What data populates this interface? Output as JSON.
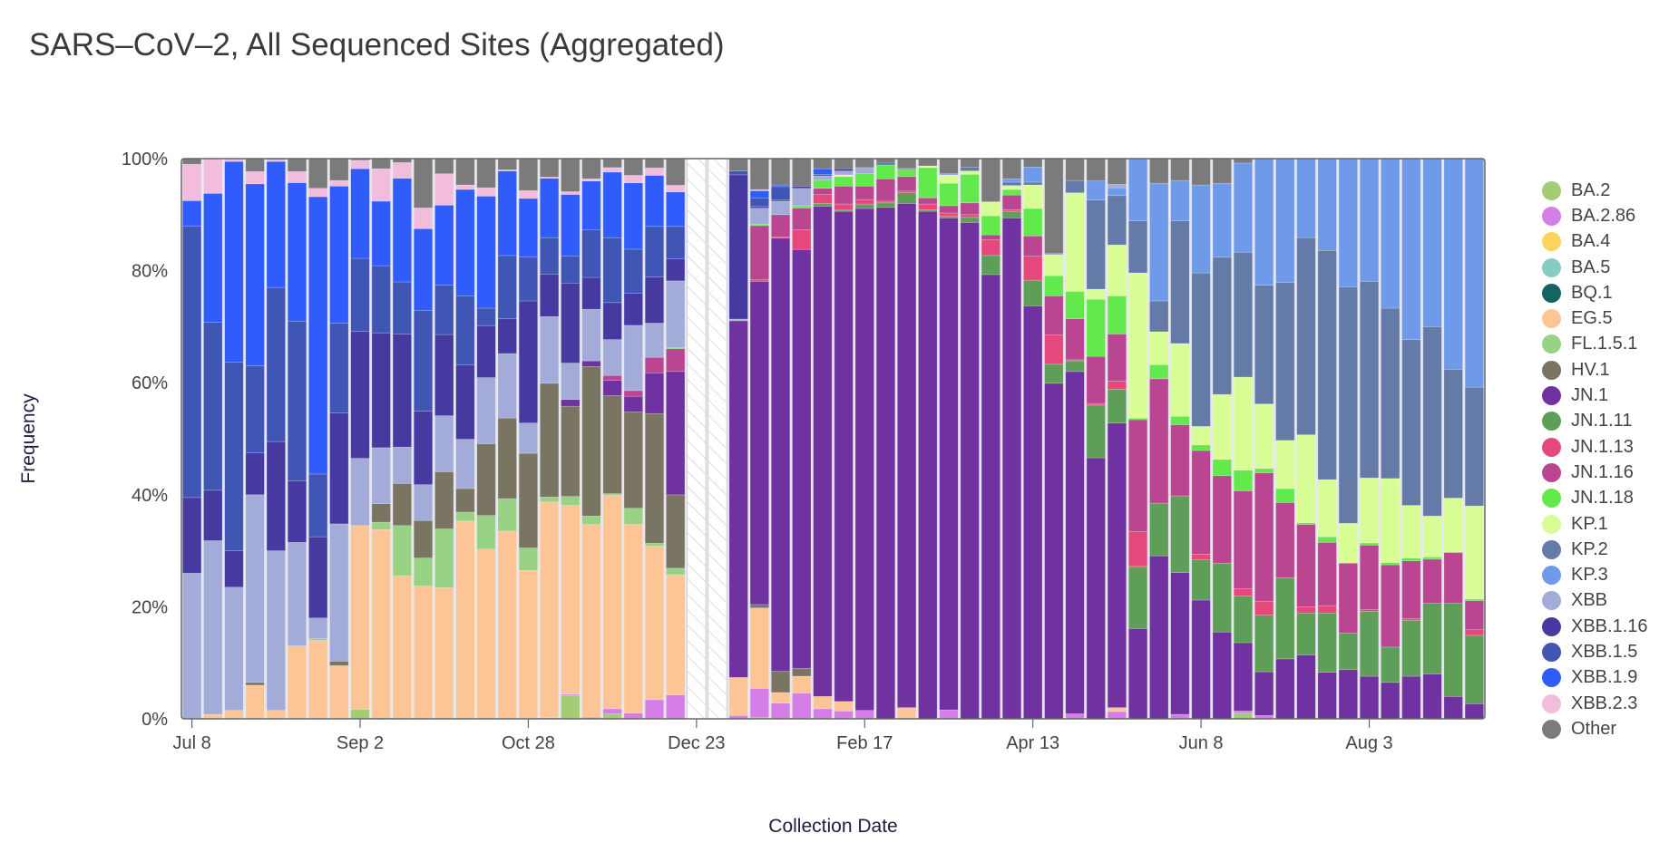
{
  "chart_data": {
    "type": "bar",
    "stacked": true,
    "title": "SARS–CoV–2, All Sequenced Sites (Aggregated)",
    "xlabel": "Collection Date",
    "ylabel": "Frequency",
    "ylim": [
      0,
      100
    ],
    "y_ticks": [
      "0%",
      "20%",
      "40%",
      "60%",
      "80%",
      "100%"
    ],
    "y_tick_values": [
      0,
      20,
      40,
      60,
      80,
      100
    ],
    "x_ticks": [
      {
        "label": "Jul 8",
        "bar_index": 0
      },
      {
        "label": "Sep 2",
        "bar_index": 8
      },
      {
        "label": "Oct 28",
        "bar_index": 16
      },
      {
        "label": "Dec 23",
        "bar_index": 24
      },
      {
        "label": "Feb 17",
        "bar_index": 32
      },
      {
        "label": "Apr 13",
        "bar_index": 40
      },
      {
        "label": "Jun 8",
        "bar_index": 48
      },
      {
        "label": "Aug 3",
        "bar_index": 56
      }
    ],
    "bar_interval": "weekly",
    "n_bars": 62,
    "missing_bars": [
      24,
      25
    ],
    "legend_position": "right",
    "series": [
      {
        "name": "BA.2",
        "color": "#a2cd72"
      },
      {
        "name": "BA.2.86",
        "color": "#d67ee8"
      },
      {
        "name": "BA.4",
        "color": "#fcd35e"
      },
      {
        "name": "BA.5",
        "color": "#85cdc4"
      },
      {
        "name": "BQ.1",
        "color": "#166363"
      },
      {
        "name": "EG.5",
        "color": "#fdc596"
      },
      {
        "name": "FL.1.5.1",
        "color": "#98d284"
      },
      {
        "name": "HV.1",
        "color": "#7a7462"
      },
      {
        "name": "JN.1",
        "color": "#7032a0"
      },
      {
        "name": "JN.1.11",
        "color": "#5f9e58"
      },
      {
        "name": "JN.1.13",
        "color": "#e5487a"
      },
      {
        "name": "JN.1.16",
        "color": "#ba4692"
      },
      {
        "name": "JN.1.18",
        "color": "#62ea4c"
      },
      {
        "name": "KP.1",
        "color": "#d9fd95"
      },
      {
        "name": "KP.2",
        "color": "#637ba6"
      },
      {
        "name": "KP.3",
        "color": "#6f9ae9"
      },
      {
        "name": "XBB",
        "color": "#a3acd8"
      },
      {
        "name": "XBB.1.16",
        "color": "#463aa0"
      },
      {
        "name": "XBB.1.5",
        "color": "#4056b4"
      },
      {
        "name": "XBB.1.9",
        "color": "#2f5cfa"
      },
      {
        "name": "XBB.2.3",
        "color": "#f2bcdc"
      },
      {
        "name": "Other",
        "color": "#7b7b7b"
      }
    ],
    "bars": [
      {
        "XBB": 26,
        "XBB.1.16": 13.5,
        "XBB.1.5": 48.5,
        "XBB.1.9": 4.5,
        "XBB.2.3": 6.5,
        "Other": 1
      },
      {
        "EG.5": 0.8,
        "XBB": 31,
        "XBB.1.16": 9,
        "XBB.1.5": 30,
        "XBB.1.9": 23,
        "XBB.2.3": 6.2
      },
      {
        "EG.5": 1.5,
        "XBB": 22,
        "XBB.1.16": 6.5,
        "XBB.1.5": 33.7,
        "XBB.1.9": 35.8,
        "XBB.2.3": 0.5
      },
      {
        "EG.5": 6,
        "HV.1": 0.5,
        "XBB": 33.5,
        "XBB.1.16": 7.5,
        "XBB.1.5": 15.5,
        "XBB.1.9": 32.5,
        "XBB.2.3": 2.2,
        "Other": 2.3
      },
      {
        "EG.5": 1.5,
        "XBB": 28.5,
        "XBB.1.16": 19.5,
        "XBB.1.5": 27.5,
        "XBB.1.9": 22.5,
        "XBB.2.3": 0.3,
        "Other": 0.2
      },
      {
        "EG.5": 13,
        "XBB": 18.5,
        "XBB.1.16": 11,
        "XBB.1.5": 28.5,
        "XBB.1.9": 24.7,
        "XBB.2.3": 2,
        "Other": 2.3
      },
      {
        "EG.5": 14,
        "FL.1.5.1": 0.3,
        "XBB": 3.7,
        "XBB.1.16": 14.5,
        "XBB.1.5": 11.2,
        "XBB.1.9": 49.5,
        "XBB.2.3": 1.5,
        "Other": 5.3
      },
      {
        "EG.5": 9.5,
        "HV.1": 0.8,
        "XBB": 24.5,
        "XBB.1.16": 19.8,
        "XBB.1.5": 16,
        "XBB.1.9": 24.5,
        "XBB.2.3": 1,
        "Other": 3.9
      },
      {
        "BA.2": 1.7,
        "EG.5": 32.8,
        "XBB": 12,
        "XBB.1.16": 22.7,
        "XBB.1.5": 13,
        "XBB.1.9": 16,
        "XBB.2.3": 1.5,
        "Other": 0.3
      },
      {
        "BA.2": 0.3,
        "EG.5": 33.5,
        "FL.1.5.1": 1.3,
        "HV.1": 3.3,
        "XBB": 10,
        "XBB.1.16": 20.5,
        "XBB.1.5": 12,
        "XBB.1.9": 11.5,
        "XBB.2.3": 5.8,
        "Other": 1.8
      },
      {
        "EG.5": 25.5,
        "FL.1.5.1": 9,
        "HV.1": 7.5,
        "XBB": 6.5,
        "XBB.1.16": 20.2,
        "XBB.1.5": 9.3,
        "XBB.1.9": 18.5,
        "XBB.2.3": 2.8,
        "Other": 0.7
      },
      {
        "EG.5": 23.7,
        "FL.1.5.1": 5,
        "HV.1": 6.7,
        "XBB": 6.4,
        "XBB.1.16": 13.1,
        "XBB.1.5": 18,
        "XBB.1.9": 14.6,
        "XBB.2.3": 3.7,
        "Other": 8.8
      },
      {
        "EG.5": 23.4,
        "FL.1.5.1": 10.5,
        "HV.1": 10.2,
        "XBB": 10,
        "XBB.1.16": 14.5,
        "XBB.1.5": 8.8,
        "XBB.1.9": 14.3,
        "XBB.2.3": 5.6,
        "Other": 2.7
      },
      {
        "EG.5": 35.3,
        "FL.1.5.1": 1.6,
        "HV.1": 4.2,
        "XBB": 8.8,
        "XBB.1.16": 13.3,
        "XBB.1.5": 12.3,
        "XBB.1.9": 19,
        "XBB.2.3": 0.8,
        "Other": 4.7
      },
      {
        "EG.5": 30.3,
        "FL.1.5.1": 6,
        "HV.1": 12.8,
        "XBB": 11.8,
        "XBB.1.16": 9.3,
        "XBB.1.5": 3.1,
        "XBB.1.9": 20,
        "XBB.2.3": 1.5,
        "Other": 5.2
      },
      {
        "EG.5": 33.5,
        "FL.1.5.1": 5.8,
        "HV.1": 14.4,
        "XBB": 11.5,
        "XBB.1.16": 6.2,
        "XBB.1.5": 11.3,
        "XBB.1.9": 15.1,
        "XBB.2.3": 0.2,
        "Other": 2
      },
      {
        "EG.5": 26.5,
        "FL.1.5.1": 4,
        "HV.1": 16.9,
        "XBB": 5.4,
        "XBB.1.16": 21.8,
        "XBB.1.5": 7.9,
        "XBB.1.9": 10.4,
        "XBB.2.3": 1.4,
        "Other": 5.7
      },
      {
        "BA.2": 0.2,
        "EG.5": 38.5,
        "FL.1.5.1": 0.9,
        "HV.1": 20.3,
        "XBB": 11.9,
        "XBB.1.16": 7.6,
        "XBB.1.5": 6.5,
        "XBB.1.9": 10.6,
        "XBB.2.3": 0.2,
        "Other": 3.3
      },
      {
        "BA.2": 4.2,
        "BA.2.86": 0.2,
        "EG.5": 33.7,
        "FL.1.5.1": 1.6,
        "HV.1": 16.1,
        "JN.1": 1.2,
        "XBB": 6.5,
        "XBB.1.16": 14.3,
        "XBB.1.5": 4.8,
        "XBB.1.9": 11,
        "XBB.2.3": 0.5,
        "Other": 5.9
      },
      {
        "BA.2.86": 0.3,
        "EG.5": 34.4,
        "FL.1.5.1": 1.5,
        "HV.1": 26.7,
        "JN.1": 1,
        "XBB": 9.2,
        "XBB.1.16": 5.7,
        "XBB.1.5": 8.5,
        "XBB.1.9": 8.7,
        "XBB.2.3": 0.4,
        "Other": 3.6
      },
      {
        "BA.2": 0.9,
        "BA.2.86": 0.9,
        "EG.5": 38.1,
        "FL.1.5.1": 0.3,
        "HV.1": 17.5,
        "JN.1": 2.7,
        "JN.1.16": 0.9,
        "XBB": 6.4,
        "XBB.1.16": 6.6,
        "XBB.1.5": 11.6,
        "XBB.1.9": 11.7,
        "XBB.2.3": 0.8,
        "Other": 1.6
      },
      {
        "BA.2.86": 1,
        "EG.5": 32.7,
        "FL.1.5.1": 2.8,
        "HV.1": 16.7,
        "JN.1": 2.7,
        "JN.1.16": 1,
        "XBB": 11.3,
        "XBB.1.16": 5.6,
        "XBB.1.5": 7.6,
        "XBB.1.9": 11.5,
        "XBB.2.3": 1.3,
        "Other": 2.9
      },
      {
        "BA.2.86": 3.3,
        "EG.5": 26.5,
        "FL.1.5.1": 0.5,
        "HV.1": 22.4,
        "JN.1": 7,
        "JN.1.16": 2.7,
        "XBB": 5.9,
        "XBB.1.16": 8,
        "XBB.1.5": 8.7,
        "XBB.1.9": 8.8,
        "XBB.2.3": 1.3,
        "Other": 1.6
      },
      {
        "BA.2.86": 4.3,
        "EG.5": 21.6,
        "FL.1.5.1": 1.2,
        "HV.1": 13.2,
        "JN.1": 22.2,
        "JN.1.16": 4.1,
        "JN.1.18": 0.2,
        "XBB": 12,
        "XBB.1.16": 4,
        "XBB.1.5": 5.8,
        "XBB.1.9": 6.2,
        "XBB.2.3": 1.2,
        "Other": 4.8
      },
      null,
      null,
      {
        "BA.2.86": 0.6,
        "EG.5": 6.8,
        "JN.1": 63.8,
        "XBB": 0.3,
        "XBB.1.16": 25.8,
        "XBB.1.5": 0.7,
        "Other": 2.2
      },
      {
        "BA.2": 0.2,
        "BA.2.86": 5.2,
        "EG.5": 14.3,
        "HV.1": 0.6,
        "JN.1": 57.4,
        "JN.1.13": 0.3,
        "JN.1.16": 9.6,
        "JN.1.18": 0.2,
        "XBB": 2.9,
        "XBB.1.16": 0.3,
        "XBB.1.5": 1.5,
        "XBB.1.9": 1.3,
        "XBB.2.3": 0.2,
        "Other": 5.5
      },
      {
        "BA.2.86": 2.8,
        "EG.5": 1.9,
        "HV.1": 3.8,
        "JN.1": 77.3,
        "JN.1.13": 0.2,
        "JN.1.16": 4,
        "XBB": 2.4,
        "XBB.1.16": 0.2,
        "XBB.1.5": 2.4,
        "XBB.1.9": 0.3,
        "Other": 4.7
      },
      {
        "BA.2.86": 4.6,
        "EG.5": 3,
        "HV.1": 1.4,
        "JN.1": 74.7,
        "JN.1.13": 3.5,
        "JN.1.16": 3.9,
        "JN.1.18": 0.4,
        "XBB": 3.1,
        "XBB.1.16": 0.4,
        "Other": 4.9
      },
      {
        "BA.2.86": 1.8,
        "EG.5": 2.2,
        "JN.1": 87.5,
        "JN.1.11": 0.5,
        "JN.1.13": 1.6,
        "JN.1.16": 1.1,
        "JN.1.18": 1.5,
        "XBB": 0.7,
        "XBB.1.5": 0.3,
        "XBB.1.9": 1,
        "Other": 1.8
      },
      {
        "BA.2.86": 1.4,
        "EG.5": 1.7,
        "JN.1": 87.5,
        "JN.1.11": 0.2,
        "JN.1.13": 1.1,
        "JN.1.16": 3.2,
        "JN.1.18": 1.7,
        "KP.1": 0.3,
        "XBB": 0.7,
        "XBB.1.16": 0.4,
        "Other": 1.8
      },
      {
        "BA.2.86": 1.5,
        "JN.1": 89.6,
        "JN.1.11": 0.8,
        "JN.1.13": 0.8,
        "JN.1.16": 2.4,
        "JN.1.18": 2.2,
        "XBB": 1.1,
        "Other": 1.6
      },
      {
        "JN.1": 91.3,
        "JN.1.11": 0.8,
        "JN.1.13": 0.3,
        "JN.1.16": 4,
        "JN.1.18": 2.5,
        "XBB.1.5": 0.3,
        "Other": 0.8
      },
      {
        "EG.5": 2,
        "JN.1": 90,
        "JN.1.11": 1.9,
        "JN.1.13": 0.3,
        "JN.1.16": 2.6,
        "JN.1.18": 1.3,
        "KP.2": 0.2,
        "Other": 1.7
      },
      {
        "JN.1": 90.6,
        "JN.1.11": 0.3,
        "JN.1.13": 1,
        "JN.1.16": 1.1,
        "JN.1.18": 5.4,
        "KP.1": 0.3,
        "Other": 1.3
      },
      {
        "BA.2.86": 1.6,
        "JN.1": 87.8,
        "JN.1.11": 0.3,
        "JN.1.13": 0.6,
        "JN.1.16": 1.3,
        "JN.1.18": 4,
        "KP.1": 1.5,
        "KP.3": 0.2,
        "Other": 2.7
      },
      {
        "JN.1": 88.6,
        "JN.1.11": 0.9,
        "JN.1.13": 0.5,
        "JN.1.16": 2.1,
        "JN.1.18": 5.1,
        "KP.1": 0.6,
        "KP.2": 0.7,
        "Other": 1.5
      },
      {
        "JN.1": 79.3,
        "JN.1.11": 3.4,
        "JN.1.13": 2.8,
        "JN.1.16": 0.9,
        "JN.1.18": 3.4,
        "KP.1": 2.5,
        "Other": 7.7
      },
      {
        "JN.1": 89.4,
        "JN.1.11": 1.2,
        "JN.1.13": 0.3,
        "JN.1.16": 2.6,
        "JN.1.18": 1,
        "KP.1": 0.7,
        "KP.2": 0.6,
        "KP.3": 0.6,
        "Other": 3.6
      },
      {
        "JN.1": 73.7,
        "JN.1.11": 4.6,
        "JN.1.13": 4.3,
        "JN.1.16": 3.6,
        "JN.1.18": 4.9,
        "KP.1": 4.2,
        "KP.2": 0.5,
        "KP.3": 2.7,
        "Other": 1.5
      },
      {
        "JN.1": 59.9,
        "JN.1.11": 3.4,
        "JN.1.13": 5.2,
        "JN.1.16": 7,
        "JN.1.18": 3.6,
        "KP.1": 3.8,
        "KP.2": 0.2,
        "Other": 16.9
      },
      {
        "BA.2.86": 0.9,
        "JN.1": 61.1,
        "JN.1.11": 1.9,
        "JN.1.13": 0.2,
        "JN.1.16": 7.3,
        "JN.1.18": 4.9,
        "KP.1": 17.6,
        "KP.2": 2.2,
        "Other": 3.9
      },
      {
        "JN.1": 46.6,
        "JN.1.11": 9.4,
        "JN.1.13": 0.3,
        "JN.1.16": 8.4,
        "JN.1.18": 10.2,
        "KP.1": 1.8,
        "KP.2": 15.9,
        "KP.3": 3.4,
        "Other": 4
      },
      {
        "BA.2.86": 1.3,
        "EG.5": 0.7,
        "JN.1": 50.8,
        "JN.1.11": 6,
        "JN.1.13": 1.5,
        "JN.1.16": 8.4,
        "JN.1.18": 6.8,
        "KP.1": 9.1,
        "KP.2": 8.8,
        "KP.3": 1.4,
        "XBB": 0.6,
        "Other": 4.6
      },
      {
        "JN.1": 16.1,
        "JN.1.11": 11.1,
        "JN.1.13": 6.2,
        "JN.1.16": 20,
        "JN.1.18": 0.3,
        "KP.1": 25.9,
        "KP.2": 9.3,
        "KP.3": 11.1
      },
      {
        "JN.1": 29.1,
        "JN.1.11": 9.4,
        "JN.1.16": 22.2,
        "JN.1.18": 2.5,
        "KP.1": 5.9,
        "KP.2": 5.5,
        "KP.3": 21,
        "Other": 4.4
      },
      {
        "BA.2.86": 0.8,
        "JN.1": 25.3,
        "JN.1.11": 13.7,
        "JN.1.16": 12.7,
        "JN.1.18": 1.5,
        "KP.1": 13,
        "KP.2": 21.9,
        "KP.3": 7.2,
        "Other": 3.9
      },
      {
        "JN.1": 21.2,
        "JN.1.11": 7.2,
        "JN.1.13": 1,
        "JN.1.16": 18.5,
        "JN.1.18": 1,
        "KP.1": 3.3,
        "KP.2": 27.4,
        "KP.3": 15.7,
        "Other": 4.7
      },
      {
        "JN.1": 15.5,
        "JN.1.11": 12.3,
        "JN.1.16": 15.6,
        "JN.1.18": 2.9,
        "KP.1": 11.6,
        "KP.2": 24.5,
        "KP.3": 13.2,
        "Other": 4.4
      },
      {
        "BA.2": 1,
        "BA.2.86": 0.4,
        "JN.1": 12.2,
        "JN.1.11": 8.3,
        "JN.1.13": 1.3,
        "JN.1.16": 17.5,
        "JN.1.18": 3.7,
        "KP.1": 16.6,
        "KP.2": 22.3,
        "KP.3": 15.9,
        "Other": 0.8
      },
      {
        "BA.2.86": 0.6,
        "JN.1": 7.8,
        "JN.1.11": 10.1,
        "JN.1.13": 2.5,
        "JN.1.16": 22.9,
        "JN.1.18": 0.8,
        "KP.1": 11.5,
        "KP.2": 21.2,
        "KP.3": 22.6
      },
      {
        "JN.1": 10.7,
        "JN.1.11": 14.5,
        "JN.1.16": 13.4,
        "JN.1.18": 2.5,
        "KP.1": 8.6,
        "KP.2": 28.2,
        "KP.3": 22.1
      },
      {
        "JN.1": 11.4,
        "JN.1.11": 7.5,
        "JN.1.13": 1.1,
        "JN.1.16": 14.7,
        "JN.1.18": 0.3,
        "KP.1": 15.7,
        "KP.2": 35.2,
        "KP.3": 14.1
      },
      {
        "JN.1": 8.3,
        "JN.1.11": 10.6,
        "JN.1.13": 1.3,
        "JN.1.16": 11.3,
        "JN.1.18": 1,
        "KP.1": 10.2,
        "KP.2": 40.9,
        "KP.3": 16.4
      },
      {
        "JN.1": 8.8,
        "JN.1.11": 6.5,
        "JN.1.16": 12.5,
        "KP.1": 7.1,
        "KP.2": 42.2,
        "KP.3": 22.9
      },
      {
        "JN.1": 7.6,
        "JN.1.11": 11.6,
        "JN.1.13": 0.3,
        "JN.1.16": 11.5,
        "JN.1.18": 0.4,
        "KP.1": 11.6,
        "KP.2": 35.1,
        "KP.3": 21.9
      },
      {
        "JN.1": 6.5,
        "JN.1.11": 6.3,
        "JN.1.16": 14.7,
        "JN.1.18": 0.4,
        "KP.1": 15,
        "KP.2": 30.4,
        "KP.3": 26.7
      },
      {
        "JN.1": 7.6,
        "JN.1.11": 10,
        "JN.1.13": 0.3,
        "JN.1.16": 10.3,
        "JN.1.18": 0.5,
        "KP.1": 9.4,
        "KP.2": 29.6,
        "KP.3": 32.3
      },
      {
        "JN.1": 8,
        "JN.1.11": 12.6,
        "JN.1.16": 7.9,
        "JN.1.18": 0.4,
        "KP.1": 7.3,
        "KP.2": 33.8,
        "KP.3": 30
      },
      {
        "JN.1": 4,
        "JN.1.11": 16.6,
        "JN.1.16": 9.1,
        "KP.1": 9.7,
        "KP.2": 23,
        "KP.3": 37.6
      },
      {
        "JN.1": 2.7,
        "JN.1.11": 12.2,
        "JN.1.13": 1,
        "JN.1.16": 5.2,
        "JN.1.18": 0.3,
        "KP.1": 16.6,
        "KP.2": 21.2,
        "KP.3": 40.8
      }
    ]
  }
}
